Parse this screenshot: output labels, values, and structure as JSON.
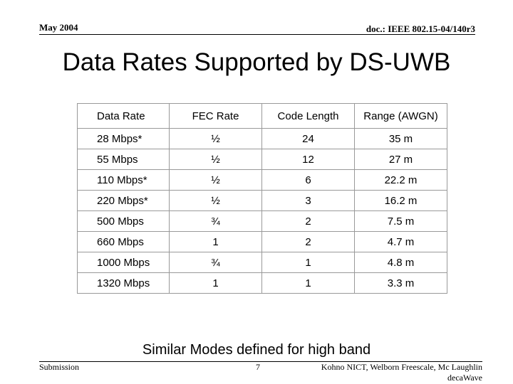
{
  "header": {
    "date": "May 2004",
    "doc": "doc.: IEEE 802.15-04/140r3"
  },
  "title": "Data Rates Supported by DS-UWB",
  "table": {
    "columns": [
      "Data Rate",
      "FEC Rate",
      "Code Length",
      "Range (AWGN)"
    ],
    "rows": [
      [
        "28 Mbps*",
        "½",
        "24",
        "35 m"
      ],
      [
        "55 Mbps",
        "½",
        "12",
        "27 m"
      ],
      [
        "110 Mbps*",
        "½",
        "6",
        "22.2 m"
      ],
      [
        "220 Mbps*",
        "½",
        "3",
        "16.2 m"
      ],
      [
        "500 Mbps",
        "¾",
        "2",
        "7.5 m"
      ],
      [
        "660 Mbps",
        "1",
        "2",
        "4.7 m"
      ],
      [
        "1000 Mbps",
        "¾",
        "1",
        "4.8 m"
      ],
      [
        "1320 Mbps",
        "1",
        "1",
        "3.3 m"
      ]
    ]
  },
  "note": "Similar Modes defined for high band",
  "footer": {
    "left": "Submission",
    "page": "7",
    "authors": [
      "Kohno NICT, Welborn Freescale, Mc Laughlin",
      "decaWave"
    ]
  }
}
